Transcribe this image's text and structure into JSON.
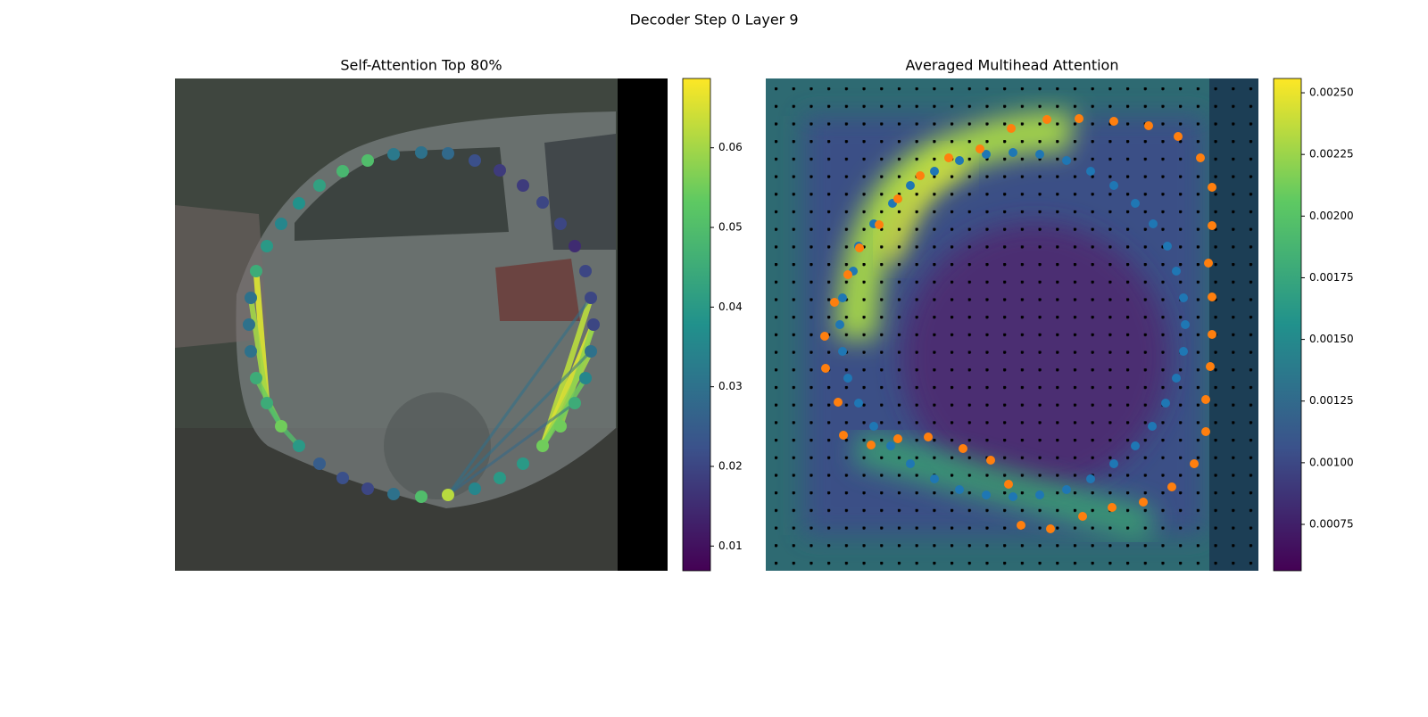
{
  "title": "Decoder Step 0 Layer 9",
  "chart_data": [
    {
      "type": "scatter",
      "title": "Self-Attention Top 80%",
      "colormap": "viridis",
      "xlim": [
        0,
        552
      ],
      "ylim": [
        552,
        0
      ],
      "x": [
        91,
        85,
        83,
        85,
        91,
        103,
        119,
        139,
        162,
        188,
        216,
        245,
        276,
        306,
        336,
        364,
        390,
        412,
        432,
        448,
        460,
        466,
        469,
        466,
        460,
        448,
        432,
        412,
        390,
        364,
        336,
        306,
        276,
        245,
        216,
        188,
        162,
        139,
        119,
        103
      ],
      "y": [
        216,
        246,
        276,
        306,
        336,
        364,
        390,
        412,
        432,
        448,
        460,
        466,
        469,
        467,
        460,
        448,
        432,
        412,
        390,
        364,
        336,
        306,
        276,
        246,
        216,
        188,
        163,
        139,
        120,
        103,
        92,
        84,
        83,
        85,
        92,
        104,
        120,
        140,
        163,
        188
      ],
      "values": [
        0.045,
        0.03,
        0.03,
        0.03,
        0.045,
        0.045,
        0.055,
        0.04,
        0.025,
        0.022,
        0.02,
        0.03,
        0.05,
        0.062,
        0.035,
        0.04,
        0.04,
        0.055,
        0.055,
        0.045,
        0.035,
        0.03,
        0.02,
        0.02,
        0.02,
        0.015,
        0.02,
        0.02,
        0.018,
        0.018,
        0.022,
        0.028,
        0.03,
        0.032,
        0.05,
        0.048,
        0.042,
        0.038,
        0.035,
        0.04
      ],
      "edges": {
        "from": [
          0,
          1,
          4,
          5,
          6,
          17,
          17,
          17,
          18,
          17,
          13,
          13,
          13
        ],
        "to": [
          5,
          5,
          6,
          6,
          7,
          23,
          22,
          21,
          22,
          20,
          21,
          23,
          19
        ],
        "values": [
          0.065,
          0.06,
          0.055,
          0.05,
          0.05,
          0.062,
          0.065,
          0.06,
          0.058,
          0.055,
          0.03,
          0.03,
          0.028
        ]
      },
      "clim": [
        0.0069,
        0.0687
      ],
      "cticks": [
        0.01,
        0.02,
        0.03,
        0.04,
        0.05,
        0.06
      ]
    },
    {
      "type": "scatter",
      "title": "Averaged Multihead Attention",
      "colormap": "viridis",
      "xlim": [
        0,
        552
      ],
      "ylim": [
        552,
        0
      ],
      "series": [
        {
          "color": "#1f77b4",
          "x": [
            142,
            162,
            189,
            217,
            247,
            277,
            307,
            337,
            364,
            390,
            414,
            434,
            450,
            460,
            468,
            470,
            468,
            460,
            448,
            433,
            414,
            390,
            364,
            337,
            307,
            277,
            247,
            217,
            189,
            162,
            140,
            121,
            104,
            92,
            86,
            83,
            86,
            98,
            104,
            121
          ],
          "y": [
            140,
            120,
            104,
            92,
            85,
            83,
            85,
            92,
            104,
            120,
            140,
            163,
            188,
            216,
            246,
            276,
            306,
            336,
            364,
            390,
            412,
            432,
            449,
            461,
            467,
            469,
            467,
            461,
            449,
            432,
            412,
            390,
            364,
            336,
            306,
            276,
            246,
            216,
            188,
            163
          ]
        },
        {
          "color": "#ff7f0e",
          "x": [
            275,
            315,
            351,
            390,
            429,
            462,
            487,
            500,
            500,
            496,
            500,
            500,
            498,
            493,
            493,
            480,
            455,
            423,
            388,
            355,
            319,
            286,
            272,
            252,
            221,
            182,
            148,
            118,
            87,
            81,
            67,
            66,
            77,
            92,
            105,
            127,
            148,
            173,
            205,
            240
          ],
          "y": [
            56,
            46,
            45,
            48,
            53,
            65,
            89,
            122,
            165,
            207,
            245,
            287,
            323,
            360,
            396,
            432,
            458,
            475,
            481,
            491,
            505,
            501,
            455,
            428,
            415,
            402,
            404,
            411,
            400,
            363,
            325,
            289,
            251,
            220,
            190,
            164,
            135,
            109,
            89,
            79
          ]
        }
      ],
      "clim": [
        0.000562,
        0.002558
      ],
      "cticks": [
        0.00075,
        {
          "value": 0.001,
          "label": "0.00100"
        },
        0.00125,
        {
          "value": 0.0015,
          "label": "0.00150"
        },
        0.00175,
        {
          "value": 0.002,
          "label": "0.00200"
        },
        0.00225,
        {
          "value": 0.0025,
          "label": "0.00250"
        }
      ]
    }
  ]
}
